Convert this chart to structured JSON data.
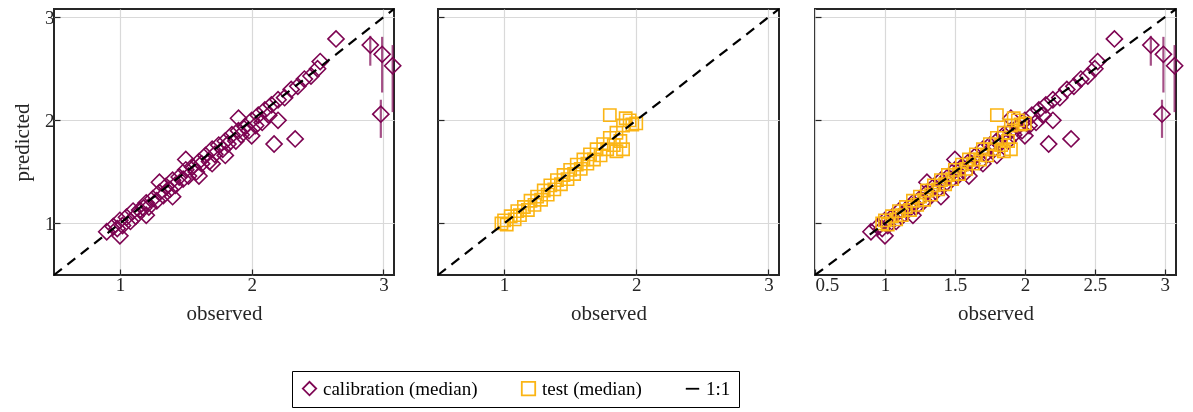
{
  "chart_data": [
    {
      "type": "scatter",
      "xlabel": "observed",
      "ylabel": "predicted",
      "xlim": [
        0.5,
        3.08
      ],
      "ylim": [
        0.5,
        3.08
      ],
      "xticks": [
        1,
        2,
        3
      ],
      "yticks": [
        1,
        2,
        3
      ],
      "grid": true,
      "legend": "bottom",
      "series": [
        {
          "name": "calibration (median)",
          "color": "#7d0452",
          "marker": "diamond",
          "x": [
            0.9,
            0.95,
            0.98,
            1.0,
            1.02,
            1.05,
            1.08,
            1.1,
            1.12,
            1.15,
            1.18,
            1.2,
            1.22,
            1.25,
            1.28,
            1.3,
            1.33,
            1.35,
            1.38,
            1.4,
            1.42,
            1.45,
            1.48,
            1.5,
            1.52,
            1.55,
            1.58,
            1.6,
            1.62,
            1.65,
            1.68,
            1.7,
            1.72,
            1.75,
            1.78,
            1.8,
            1.82,
            1.85,
            1.88,
            1.9,
            1.92,
            1.95,
            1.98,
            2.0,
            2.03,
            2.05,
            2.08,
            2.1,
            2.13,
            2.15,
            2.2,
            2.25,
            2.3,
            2.35,
            2.4,
            2.45,
            2.5,
            1.0,
            1.2,
            1.4,
            1.6,
            1.8,
            2.0,
            1.3,
            1.5,
            1.7,
            1.9,
            2.2,
            2.17,
            2.33,
            2.52,
            2.64,
            2.9,
            2.99,
            2.98,
            3.07
          ],
          "values": [
            0.92,
            0.97,
            0.95,
            1.03,
            0.98,
            1.06,
            1.02,
            1.12,
            1.07,
            1.13,
            1.15,
            1.2,
            1.16,
            1.24,
            1.22,
            1.3,
            1.27,
            1.36,
            1.33,
            1.42,
            1.37,
            1.45,
            1.43,
            1.52,
            1.46,
            1.55,
            1.5,
            1.6,
            1.58,
            1.66,
            1.6,
            1.72,
            1.67,
            1.76,
            1.72,
            1.8,
            1.77,
            1.86,
            1.8,
            1.9,
            1.86,
            1.94,
            1.9,
            2.0,
            1.95,
            2.05,
            1.98,
            2.1,
            2.05,
            2.15,
            2.2,
            2.22,
            2.3,
            2.33,
            2.4,
            2.43,
            2.5,
            0.88,
            1.08,
            1.26,
            1.46,
            1.66,
            1.85,
            1.4,
            1.62,
            1.58,
            2.02,
            2.0,
            1.77,
            1.82,
            2.57,
            2.79,
            2.73,
            2.64,
            2.06,
            2.53
          ],
          "errors": [
            null,
            null,
            null,
            null,
            null,
            null,
            null,
            null,
            null,
            null,
            null,
            null,
            null,
            null,
            null,
            null,
            null,
            null,
            null,
            null,
            null,
            null,
            null,
            null,
            null,
            null,
            null,
            null,
            null,
            null,
            null,
            null,
            null,
            null,
            null,
            null,
            null,
            null,
            null,
            null,
            null,
            null,
            null,
            null,
            null,
            null,
            null,
            null,
            null,
            null,
            null,
            null,
            null,
            null,
            null,
            null,
            null,
            null,
            null,
            null,
            null,
            null,
            null,
            null,
            null,
            null,
            null,
            null,
            null,
            null,
            null,
            null,
            [
              2.53,
              2.82
            ],
            [
              2.27,
              2.81
            ],
            [
              1.83,
              2.2
            ],
            [
              2.08,
              2.73
            ]
          ]
        },
        {
          "type": "line",
          "name": "1:1",
          "color": "#000000",
          "line_style": "dashed",
          "x": [
            0.5,
            3.08
          ],
          "values": [
            0.5,
            3.08
          ]
        }
      ]
    },
    {
      "type": "scatter",
      "xlabel": "observed",
      "xlim": [
        0.5,
        3.08
      ],
      "ylim": [
        0.5,
        3.08
      ],
      "xticks": [
        1,
        2,
        3
      ],
      "yticks": [
        1,
        2,
        3
      ],
      "grid": true,
      "legend": "bottom",
      "tick_labels": "x",
      "series": [
        {
          "name": "test (median)",
          "color": "#fbb514",
          "marker": "square",
          "x": [
            0.98,
            1.0,
            1.02,
            1.05,
            1.08,
            1.1,
            1.12,
            1.15,
            1.18,
            1.2,
            1.23,
            1.25,
            1.28,
            1.3,
            1.33,
            1.35,
            1.38,
            1.4,
            1.43,
            1.45,
            1.48,
            1.5,
            1.53,
            1.55,
            1.58,
            1.6,
            1.63,
            1.65,
            1.68,
            1.7,
            1.73,
            1.75,
            1.78,
            1.8,
            1.83,
            1.85,
            1.88,
            1.9,
            1.92,
            1.95,
            1.97,
            2.0,
            1.9,
            1.85,
            1.8
          ],
          "values": [
            1.0,
            1.03,
            0.99,
            1.07,
            1.04,
            1.12,
            1.08,
            1.16,
            1.13,
            1.22,
            1.18,
            1.26,
            1.23,
            1.32,
            1.28,
            1.37,
            1.33,
            1.42,
            1.38,
            1.47,
            1.43,
            1.52,
            1.48,
            1.57,
            1.53,
            1.62,
            1.58,
            1.67,
            1.62,
            1.72,
            1.66,
            1.77,
            1.72,
            1.83,
            1.76,
            1.88,
            1.8,
            1.95,
            2.02,
            2.0,
            1.96,
            1.97,
            1.72,
            1.7,
            2.05
          ]
        },
        {
          "type": "line",
          "name": "1:1",
          "color": "#000000",
          "line_style": "dashed",
          "x": [
            0.5,
            3.08
          ],
          "values": [
            0.5,
            3.08
          ]
        }
      ]
    },
    {
      "type": "scatter",
      "xlabel": "observed",
      "xlim": [
        0.5,
        3.08
      ],
      "ylim": [
        0.5,
        3.08
      ],
      "xticks": [
        0.5,
        1,
        1.5,
        2,
        2.5,
        3
      ],
      "yticks": [
        1,
        2,
        3
      ],
      "grid": true,
      "legend": "bottom",
      "tick_labels": "x",
      "series": [
        {
          "name": "calibration (median)",
          "color": "#7d0452",
          "marker": "diamond",
          "x": [
            0.9,
            0.95,
            0.98,
            1.0,
            1.02,
            1.05,
            1.08,
            1.1,
            1.12,
            1.15,
            1.18,
            1.2,
            1.22,
            1.25,
            1.28,
            1.3,
            1.33,
            1.35,
            1.38,
            1.4,
            1.42,
            1.45,
            1.48,
            1.5,
            1.52,
            1.55,
            1.58,
            1.6,
            1.62,
            1.65,
            1.68,
            1.7,
            1.72,
            1.75,
            1.78,
            1.8,
            1.82,
            1.85,
            1.88,
            1.9,
            1.92,
            1.95,
            1.98,
            2.0,
            2.03,
            2.05,
            2.08,
            2.1,
            2.13,
            2.15,
            2.2,
            2.25,
            2.3,
            2.35,
            2.4,
            2.45,
            2.5,
            1.0,
            1.2,
            1.4,
            1.6,
            1.8,
            2.0,
            1.3,
            1.5,
            1.7,
            1.9,
            2.2,
            2.17,
            2.33,
            2.52,
            2.64,
            2.9,
            2.99,
            2.98,
            3.07
          ],
          "values": [
            0.92,
            0.97,
            0.95,
            1.03,
            0.98,
            1.06,
            1.02,
            1.12,
            1.07,
            1.13,
            1.15,
            1.2,
            1.16,
            1.24,
            1.22,
            1.3,
            1.27,
            1.36,
            1.33,
            1.42,
            1.37,
            1.45,
            1.43,
            1.52,
            1.46,
            1.55,
            1.5,
            1.6,
            1.58,
            1.66,
            1.6,
            1.72,
            1.67,
            1.76,
            1.72,
            1.8,
            1.77,
            1.86,
            1.8,
            1.9,
            1.86,
            1.94,
            1.9,
            2.0,
            1.95,
            2.05,
            1.98,
            2.1,
            2.05,
            2.15,
            2.2,
            2.22,
            2.3,
            2.33,
            2.4,
            2.43,
            2.5,
            0.88,
            1.08,
            1.26,
            1.46,
            1.66,
            1.85,
            1.4,
            1.62,
            1.58,
            2.02,
            2.0,
            1.77,
            1.82,
            2.57,
            2.79,
            2.73,
            2.64,
            2.06,
            2.53
          ],
          "errors": [
            null,
            null,
            null,
            null,
            null,
            null,
            null,
            null,
            null,
            null,
            null,
            null,
            null,
            null,
            null,
            null,
            null,
            null,
            null,
            null,
            null,
            null,
            null,
            null,
            null,
            null,
            null,
            null,
            null,
            null,
            null,
            null,
            null,
            null,
            null,
            null,
            null,
            null,
            null,
            null,
            null,
            null,
            null,
            null,
            null,
            null,
            null,
            null,
            null,
            null,
            null,
            null,
            null,
            null,
            null,
            null,
            null,
            null,
            null,
            null,
            null,
            null,
            null,
            null,
            null,
            null,
            null,
            null,
            null,
            null,
            null,
            null,
            [
              2.53,
              2.82
            ],
            [
              2.27,
              2.81
            ],
            [
              1.83,
              2.2
            ],
            [
              2.08,
              2.73
            ]
          ]
        },
        {
          "name": "test (median)",
          "color": "#fbb514",
          "marker": "square",
          "x": [
            0.98,
            1.0,
            1.02,
            1.05,
            1.08,
            1.1,
            1.12,
            1.15,
            1.18,
            1.2,
            1.23,
            1.25,
            1.28,
            1.3,
            1.33,
            1.35,
            1.38,
            1.4,
            1.43,
            1.45,
            1.48,
            1.5,
            1.53,
            1.55,
            1.58,
            1.6,
            1.63,
            1.65,
            1.68,
            1.7,
            1.73,
            1.75,
            1.78,
            1.8,
            1.83,
            1.85,
            1.88,
            1.9,
            1.92,
            1.95,
            1.97,
            2.0,
            1.9,
            1.85,
            1.8
          ],
          "values": [
            1.0,
            1.03,
            0.99,
            1.07,
            1.04,
            1.12,
            1.08,
            1.16,
            1.13,
            1.22,
            1.18,
            1.26,
            1.23,
            1.32,
            1.28,
            1.37,
            1.33,
            1.42,
            1.38,
            1.47,
            1.43,
            1.52,
            1.48,
            1.57,
            1.53,
            1.62,
            1.58,
            1.67,
            1.62,
            1.72,
            1.66,
            1.77,
            1.72,
            1.83,
            1.76,
            1.88,
            1.8,
            1.95,
            2.02,
            2.0,
            1.96,
            1.97,
            1.72,
            1.7,
            2.05
          ]
        },
        {
          "type": "line",
          "name": "1:1",
          "color": "#000000",
          "line_style": "dashed",
          "x": [
            0.5,
            3.08
          ],
          "values": [
            0.5,
            3.08
          ]
        }
      ]
    }
  ]
}
